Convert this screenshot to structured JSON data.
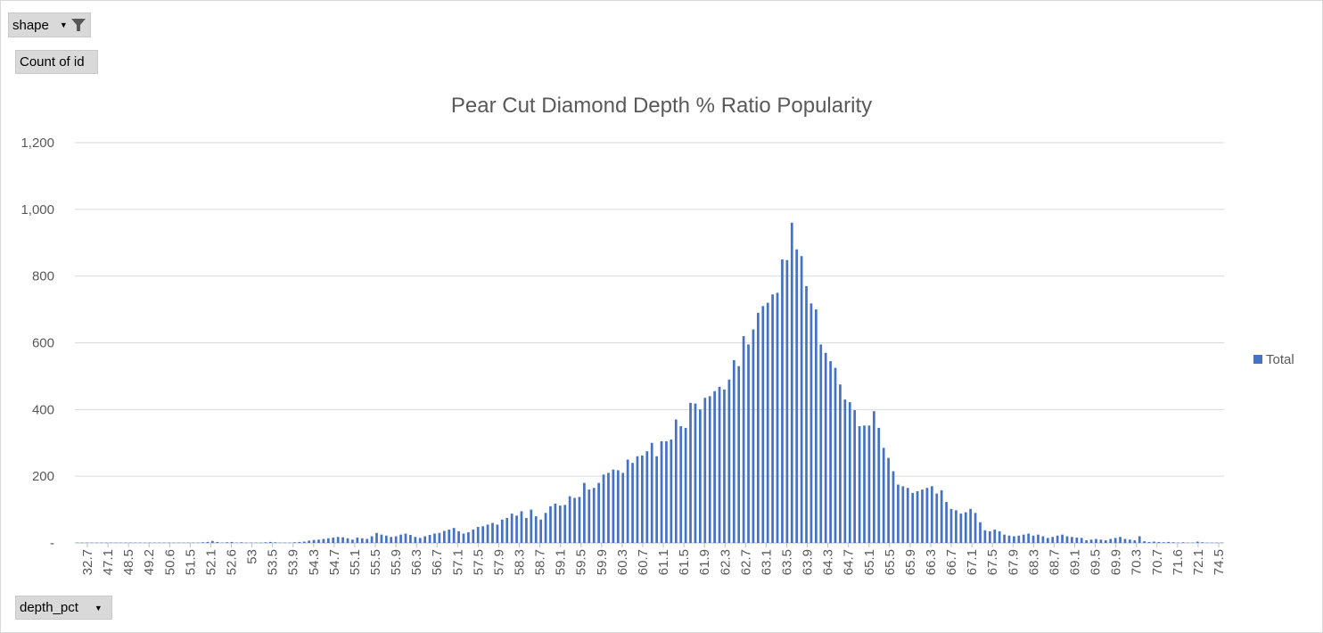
{
  "filter_button": {
    "label": "shape",
    "icons": [
      "dropdown-arrow",
      "filter-funnel"
    ]
  },
  "value_button": {
    "label": "Count of id"
  },
  "axis_button": {
    "label": "depth_pct",
    "icon": "dropdown-arrow"
  },
  "chart_data": {
    "type": "bar",
    "title": "Pear Cut Diamond Depth % Ratio Popularity",
    "xlabel": "",
    "ylabel": "",
    "ylim": [
      0,
      1200
    ],
    "y_ticks": [
      0,
      200,
      400,
      600,
      800,
      1000,
      1200
    ],
    "y_tick_labels": [
      "-",
      "200",
      "400",
      "600",
      "800",
      "1,000",
      "1,200"
    ],
    "grid": true,
    "legend_position": "right",
    "bar_color": "#4472C4",
    "x_tick_labels": [
      "32.7",
      "47.1",
      "48.5",
      "49.2",
      "50.6",
      "51.5",
      "52.1",
      "52.6",
      "53",
      "53.5",
      "53.9",
      "54.3",
      "54.7",
      "55.1",
      "55.5",
      "55.9",
      "56.3",
      "56.7",
      "57.1",
      "57.5",
      "57.9",
      "58.3",
      "58.7",
      "59.1",
      "59.5",
      "59.9",
      "60.3",
      "60.7",
      "61.1",
      "61.5",
      "61.9",
      "62.3",
      "62.7",
      "63.1",
      "63.5",
      "63.9",
      "64.3",
      "64.7",
      "65.1",
      "65.5",
      "65.9",
      "66.3",
      "66.7",
      "67.1",
      "67.5",
      "67.9",
      "68.3",
      "68.7",
      "69.1",
      "69.5",
      "69.9",
      "70.3",
      "70.7",
      "71.6",
      "72.1",
      "74.5"
    ],
    "series": [
      {
        "name": "Total",
        "values": [
          1,
          1,
          1,
          1,
          1,
          1,
          1,
          1,
          1,
          1,
          1,
          1,
          1,
          1,
          1,
          1,
          1,
          1,
          1,
          1,
          1,
          1,
          1,
          1,
          1,
          1,
          2,
          3,
          6,
          3,
          1,
          2,
          3,
          1,
          2,
          1,
          1,
          1,
          1,
          2,
          3,
          2,
          1,
          1,
          1,
          2,
          3,
          4,
          7,
          9,
          10,
          12,
          14,
          16,
          18,
          17,
          14,
          10,
          16,
          14,
          12,
          20,
          30,
          25,
          22,
          18,
          20,
          25,
          28,
          24,
          18,
          15,
          20,
          24,
          28,
          30,
          36,
          40,
          45,
          35,
          28,
          32,
          40,
          48,
          50,
          55,
          60,
          55,
          70,
          75,
          88,
          82,
          95,
          75,
          100,
          80,
          70,
          90,
          110,
          118,
          112,
          114,
          140,
          135,
          138,
          180,
          160,
          165,
          180,
          205,
          210,
          220,
          218,
          210,
          250,
          240,
          260,
          262,
          275,
          300,
          260,
          305,
          305,
          310,
          370,
          350,
          345,
          420,
          418,
          400,
          435,
          440,
          455,
          468,
          460,
          490,
          548,
          530,
          620,
          595,
          640,
          690,
          710,
          720,
          745,
          750,
          850,
          848,
          960,
          880,
          860,
          770,
          718,
          700,
          595,
          570,
          545,
          525,
          475,
          430,
          422,
          398,
          350,
          352,
          352,
          395,
          345,
          285,
          255,
          215,
          175,
          170,
          165,
          150,
          155,
          160,
          165,
          170,
          148,
          158,
          123,
          102,
          98,
          88,
          92,
          102,
          90,
          62,
          38,
          35,
          40,
          35,
          25,
          22,
          20,
          22,
          25,
          28,
          22,
          25,
          20,
          15,
          18,
          22,
          25,
          20,
          18,
          16,
          15,
          8,
          10,
          12,
          10,
          8,
          12,
          15,
          18,
          12,
          10,
          8,
          20,
          5,
          3,
          4,
          3,
          2,
          3,
          2,
          1,
          2,
          1,
          1,
          4,
          2,
          1,
          1,
          1,
          1
        ]
      }
    ]
  }
}
